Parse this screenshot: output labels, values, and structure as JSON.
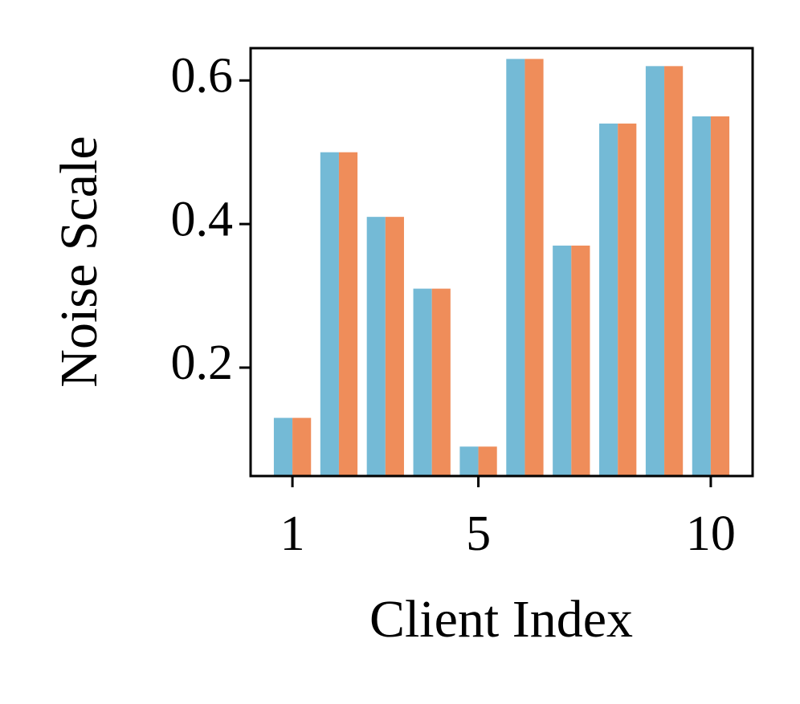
{
  "chart_data": {
    "type": "bar",
    "x_label": "Client Index",
    "y_label": "Noise Scale",
    "x": [
      1,
      2,
      3,
      4,
      5,
      6,
      7,
      8,
      9,
      10
    ],
    "xlim": [
      0.1,
      10.9
    ],
    "xticks": [
      1,
      5,
      10
    ],
    "ylim": [
      0.049,
      0.645
    ],
    "yticks": [
      0.2,
      0.4,
      0.6
    ],
    "series": [
      {
        "color": "#74bad6",
        "values": [
          0.13,
          0.5,
          0.41,
          0.31,
          0.09,
          0.63,
          0.37,
          0.54,
          0.62,
          0.55
        ]
      },
      {
        "color": "#ef8d5a",
        "values": [
          0.13,
          0.5,
          0.41,
          0.31,
          0.09,
          0.63,
          0.37,
          0.54,
          0.62,
          0.55
        ]
      }
    ],
    "grid": false
  }
}
